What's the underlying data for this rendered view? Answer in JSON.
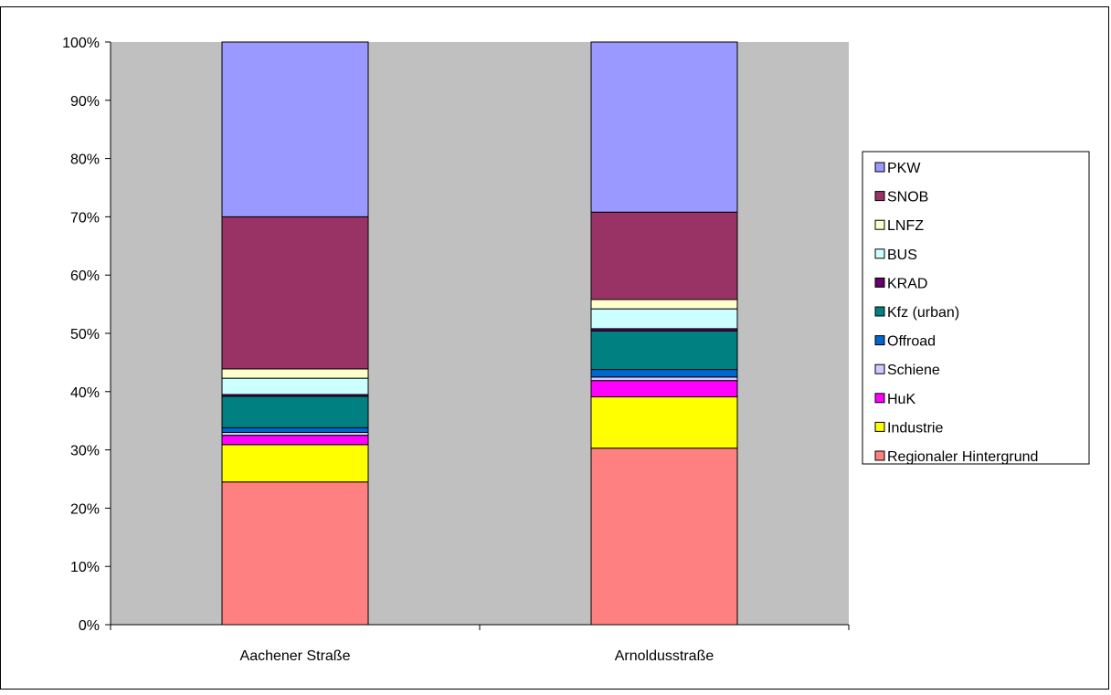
{
  "chart_data": {
    "type": "bar",
    "stacked": true,
    "percent_stacked": true,
    "title": "",
    "xlabel": "",
    "ylabel": "",
    "ylim": [
      0,
      100
    ],
    "yticks": [
      "0%",
      "10%",
      "20%",
      "30%",
      "40%",
      "50%",
      "60%",
      "70%",
      "80%",
      "90%",
      "100%"
    ],
    "grid": false,
    "legend_position": "right",
    "plot_background": "#c0c0c0",
    "categories": [
      "Aachener Straße",
      "Arnoldusstraße"
    ],
    "series": [
      {
        "name": "Regionaler Hintergrund",
        "color": "#ff8080",
        "values": [
          24.5,
          30.3
        ]
      },
      {
        "name": "Industrie",
        "color": "#ffff00",
        "values": [
          6.4,
          8.8
        ]
      },
      {
        "name": "HuK",
        "color": "#ff00ff",
        "values": [
          1.6,
          2.8
        ]
      },
      {
        "name": "Schiene",
        "color": "#ccccff",
        "values": [
          0.5,
          0.6
        ]
      },
      {
        "name": "Offroad",
        "color": "#0066cc",
        "values": [
          0.8,
          1.3
        ]
      },
      {
        "name": "Kfz (urban)",
        "color": "#008080",
        "values": [
          5.4,
          6.6
        ]
      },
      {
        "name": "KRAD",
        "color": "#660066",
        "values": [
          0.3,
          0.4
        ]
      },
      {
        "name": "BUS",
        "color": "#ccffff",
        "values": [
          2.8,
          3.4
        ]
      },
      {
        "name": "LNFZ",
        "color": "#ffffcc",
        "values": [
          1.6,
          1.6
        ]
      },
      {
        "name": "SNOB",
        "color": "#993366",
        "values": [
          26.1,
          15.0
        ]
      },
      {
        "name": "PKW",
        "color": "#9999ff",
        "values": [
          30.0,
          29.2
        ]
      }
    ]
  }
}
